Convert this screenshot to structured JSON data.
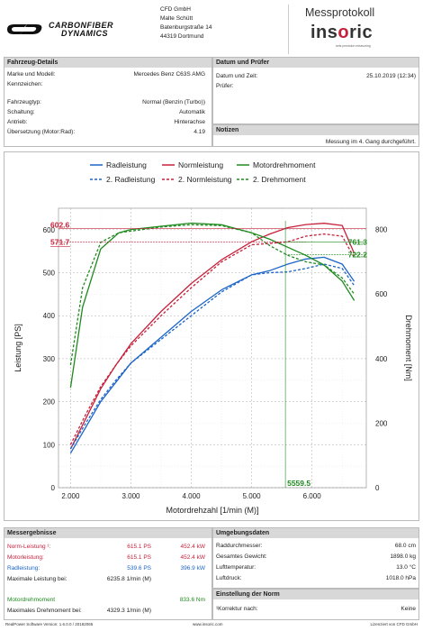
{
  "header": {
    "brand_line1": "CARBONFIBER",
    "brand_line2": "DYNAMICS",
    "brand_mark": "CD",
    "address": [
      "CFD GmbH",
      "Malte Schütt",
      "Batenburgstraße 14",
      "44319 Dortmund"
    ],
    "title": "Messprotokoll",
    "logo_text_a": "ins",
    "logo_text_o": "o",
    "logo_text_b": "ric",
    "logo_slogan": "sets precision measuring"
  },
  "vehicle": {
    "section_title": "Fahrzeug-Details",
    "rows1": [
      {
        "label": "Marke und Modell:",
        "value": "Mercedes Benz C63S AMG"
      },
      {
        "label": "Kennzeichen:",
        "value": ""
      }
    ],
    "rows2": [
      {
        "label": "Fahrzeugtyp:",
        "value": "Normal (Benzin (Turbo))"
      },
      {
        "label": "Schaltung:",
        "value": "Automatik"
      },
      {
        "label": "Antrieb:",
        "value": "Hinterachse"
      },
      {
        "label": "Übersetzung (Motor:Rad):",
        "value": "4.19"
      }
    ]
  },
  "date": {
    "section_title": "Datum und Prüfer",
    "rows": [
      {
        "label": "Datum und Zeit:",
        "value": "25.10.2019 (12:34)"
      },
      {
        "label": "Prüfer:",
        "value": ""
      }
    ]
  },
  "notes": {
    "section_title": "Notizen",
    "text": "Messung im 4. Gang durchgeführt."
  },
  "legend": [
    {
      "label": "Radleistung",
      "color": "#1c64c8",
      "dashed": false
    },
    {
      "label": "Normleistung",
      "color": "#c7213b",
      "dashed": false
    },
    {
      "label": "Motordrehmoment",
      "color": "#1f8a1f",
      "dashed": false
    },
    {
      "label": "2. Radleistung",
      "color": "#1c64c8",
      "dashed": true
    },
    {
      "label": "2. Normleistung",
      "color": "#c7213b",
      "dashed": true
    },
    {
      "label": "2. Drehmoment",
      "color": "#1f8a1f",
      "dashed": true
    }
  ],
  "chart_data": {
    "type": "line",
    "xlabel": "Motordrehzahl [1/min (M)]",
    "ylabel": "Leistung [PS]",
    "y2label": "Drehmoment [Nm]",
    "xlim": [
      1800,
      6900
    ],
    "ylim": [
      0,
      650
    ],
    "y2lim": [
      0,
      866
    ],
    "xticks": [
      2000,
      3000,
      4000,
      5000,
      6000
    ],
    "xtick_labels": [
      "2.000",
      "3.000",
      "4.000",
      "5.000",
      "6.000"
    ],
    "yticks": [
      0,
      100,
      200,
      300,
      400,
      500,
      600
    ],
    "y2ticks": [
      0,
      200,
      400,
      600,
      800
    ],
    "grid": true,
    "annotations": {
      "left_red_high": "602.6",
      "left_red_low": "571.7",
      "right_green_high": "761.3",
      "right_green_low": "722.2",
      "bottom_rpm": "5559.5"
    },
    "series": [
      {
        "name": "Radleistung",
        "axis": "left",
        "color": "#1c64c8",
        "dashed": false,
        "x": [
          2000,
          2250,
          2500,
          2750,
          3000,
          3500,
          4000,
          4500,
          5000,
          5300,
          5600,
          5900,
          6200,
          6500,
          6700
        ],
        "y": [
          80,
          140,
          200,
          245,
          290,
          350,
          410,
          460,
          495,
          505,
          520,
          532,
          536,
          520,
          480
        ]
      },
      {
        "name": "Normleistung",
        "axis": "left",
        "color": "#c7213b",
        "dashed": false,
        "x": [
          2000,
          2250,
          2500,
          2750,
          3000,
          3500,
          4000,
          4500,
          5000,
          5300,
          5600,
          5900,
          6200,
          6500,
          6700
        ],
        "y": [
          90,
          160,
          230,
          285,
          335,
          410,
          475,
          530,
          572,
          590,
          605,
          612,
          615,
          610,
          545
        ]
      },
      {
        "name": "Motordrehmoment",
        "axis": "right",
        "color": "#1f8a1f",
        "dashed": false,
        "x": [
          2000,
          2200,
          2500,
          2800,
          3000,
          3500,
          4000,
          4500,
          5000,
          5300,
          5600,
          5900,
          6200,
          6500,
          6700
        ],
        "y": [
          310,
          560,
          740,
          790,
          800,
          810,
          820,
          815,
          790,
          770,
          745,
          720,
          690,
          640,
          580
        ]
      },
      {
        "name": "2. Radleistung",
        "axis": "left",
        "color": "#1c64c8",
        "dashed": true,
        "x": [
          2000,
          2250,
          2500,
          2750,
          3000,
          3500,
          4000,
          4500,
          5000,
          5300,
          5600,
          5900,
          6200,
          6500,
          6700
        ],
        "y": [
          90,
          150,
          205,
          250,
          290,
          345,
          400,
          455,
          495,
          500,
          502,
          510,
          520,
          510,
          470
        ]
      },
      {
        "name": "2. Normleistung",
        "axis": "left",
        "color": "#c7213b",
        "dashed": true,
        "x": [
          2000,
          2250,
          2500,
          2750,
          3000,
          3500,
          4000,
          4500,
          5000,
          5300,
          5600,
          5900,
          6200,
          6500,
          6700
        ],
        "y": [
          100,
          170,
          235,
          285,
          330,
          400,
          465,
          525,
          565,
          568,
          572,
          585,
          590,
          585,
          535
        ]
      },
      {
        "name": "2. Drehmoment",
        "axis": "right",
        "color": "#1f8a1f",
        "dashed": true,
        "x": [
          2000,
          2200,
          2500,
          2800,
          3000,
          3500,
          4000,
          4500,
          5000,
          5300,
          5600,
          5900,
          6200,
          6500,
          6700
        ],
        "y": [
          380,
          620,
          760,
          790,
          795,
          808,
          815,
          812,
          790,
          750,
          720,
          700,
          690,
          650,
          600
        ]
      }
    ]
  },
  "results": {
    "section_title": "Messergebnisse",
    "rows": [
      {
        "label": "Norm-Leistung ¹:",
        "v1": "615.1 PS",
        "v2": "452.4 kW",
        "color": "#c7213b"
      },
      {
        "label": "Motorleistung:",
        "v1": "615.1 PS",
        "v2": "452.4 kW",
        "color": "#c7213b"
      },
      {
        "label": "Radleistung:",
        "v1": "539.6 PS",
        "v2": "396.9 kW",
        "color": "#1c64c8"
      },
      {
        "label": "Maximale Leistung bei:",
        "v1": "6235.8 1/min (M)",
        "v2": "",
        "color": "#222"
      }
    ],
    "rows2": [
      {
        "label": "Motordrehmoment",
        "v1": "",
        "v2": "833.6 Nm",
        "color": "#1f8a1f"
      },
      {
        "label": "Maximales Drehmoment bei:",
        "v1": "4329.3 1/min (M)",
        "v2": "",
        "color": "#222"
      }
    ]
  },
  "environment": {
    "section_title": "Umgebungsdaten",
    "rows": [
      {
        "label": "Raddurchmesser:",
        "value": "68.0 cm"
      },
      {
        "label": "Gesamtes Gewicht:",
        "value": "1898.0 kg"
      },
      {
        "label": "Lufttemperatur:",
        "value": "13.0 °C"
      },
      {
        "label": "Luftdruck:",
        "value": "1018.0 hPa"
      }
    ]
  },
  "norm": {
    "section_title": "Einstellung der Norm",
    "label": "¹Korrektur nach:",
    "value": "Keine"
  },
  "footer": {
    "left": "RealPower Software Version: 1.6.0.0 / 20182065",
    "center": "www.insoric.com",
    "right": "Lizenziert von CFD GmbH"
  }
}
